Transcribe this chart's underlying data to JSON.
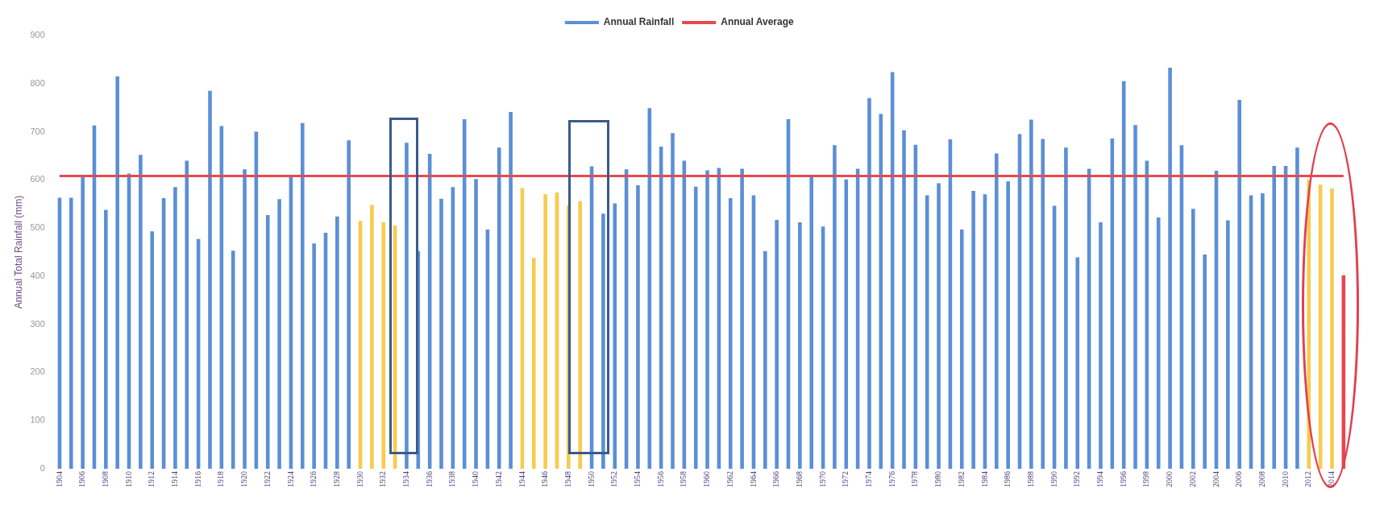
{
  "chart_data": {
    "type": "bar",
    "ylabel": "Annual Total Rainfall (mm)",
    "categories": [
      "1904",
      null,
      "1906",
      null,
      "1908",
      null,
      "1910",
      null,
      "1912",
      null,
      "1914",
      null,
      "1916",
      null,
      "1918",
      null,
      "1920",
      null,
      "1922",
      null,
      "1924",
      null,
      "1926",
      null,
      "1928",
      null,
      "1930",
      null,
      "1932",
      null,
      "1934",
      null,
      "1936",
      null,
      "1938",
      null,
      "1940",
      null,
      "1942",
      null,
      "1944",
      null,
      "1946",
      null,
      "1948",
      null,
      "1950",
      null,
      "1952",
      null,
      "1954",
      null,
      "1956",
      null,
      "1958",
      null,
      "1960",
      null,
      "1962",
      null,
      "1964",
      null,
      "1966",
      null,
      "1968",
      null,
      "1970",
      null,
      "1972",
      null,
      "1974",
      null,
      "1976",
      null,
      "1978",
      null,
      "1980",
      null,
      "1982",
      null,
      "1984",
      null,
      "1986",
      null,
      "1988",
      null,
      "1990",
      null,
      "1992",
      null,
      "1994",
      null,
      "1996",
      null,
      "1998",
      null,
      "2000",
      null,
      "2002",
      null,
      "2004",
      null,
      "2006",
      null,
      "2008",
      null,
      "2010",
      null,
      "2012",
      null,
      "2014",
      null
    ],
    "series": [
      {
        "name": "Annual Rainfall",
        "color": "#5b8fd6",
        "values": [
          563,
          563,
          608,
          713,
          538,
          815,
          613,
          652,
          493,
          562,
          585,
          640,
          477,
          785,
          712,
          453,
          622,
          700,
          527,
          560,
          608,
          718,
          468,
          490,
          524,
          682,
          515,
          548,
          512,
          505,
          677,
          452,
          654,
          561,
          585,
          726,
          602,
          497,
          667,
          741,
          583,
          438,
          570,
          574,
          547,
          556,
          628,
          530,
          551,
          622,
          589,
          749,
          669,
          697,
          640,
          586,
          620,
          625,
          562,
          623,
          568,
          452,
          517,
          726,
          512,
          607,
          503,
          672,
          601,
          623,
          770,
          737,
          824,
          703,
          673,
          568,
          593,
          684,
          497,
          577,
          570,
          655,
          597,
          695,
          725,
          685,
          546,
          667,
          439,
          623,
          512,
          686,
          805,
          714,
          640,
          522,
          833,
          672,
          540,
          445,
          619,
          516,
          766,
          568,
          572,
          629,
          629,
          667,
          600,
          590,
          582,
          402
        ],
        "colors": [
          "#5b8fd6",
          "#5b8fd6",
          "#5b8fd6",
          "#5b8fd6",
          "#5b8fd6",
          "#5b8fd6",
          "#5b8fd6",
          "#5b8fd6",
          "#5b8fd6",
          "#5b8fd6",
          "#5b8fd6",
          "#5b8fd6",
          "#5b8fd6",
          "#5b8fd6",
          "#5b8fd6",
          "#5b8fd6",
          "#5b8fd6",
          "#5b8fd6",
          "#5b8fd6",
          "#5b8fd6",
          "#5b8fd6",
          "#5b8fd6",
          "#5b8fd6",
          "#5b8fd6",
          "#5b8fd6",
          "#5b8fd6",
          "#f7cb4d",
          "#f7cb4d",
          "#f7cb4d",
          "#f7cb4d",
          "#5b8fd6",
          "#5b8fd6",
          "#5b8fd6",
          "#5b8fd6",
          "#5b8fd6",
          "#5b8fd6",
          "#5b8fd6",
          "#5b8fd6",
          "#5b8fd6",
          "#5b8fd6",
          "#f7cb4d",
          "#f7cb4d",
          "#f7cb4d",
          "#f7cb4d",
          "#f7cb4d",
          "#f7cb4d",
          "#5b8fd6",
          "#5b8fd6",
          "#5b8fd6",
          "#5b8fd6",
          "#5b8fd6",
          "#5b8fd6",
          "#5b8fd6",
          "#5b8fd6",
          "#5b8fd6",
          "#5b8fd6",
          "#5b8fd6",
          "#5b8fd6",
          "#5b8fd6",
          "#5b8fd6",
          "#5b8fd6",
          "#5b8fd6",
          "#5b8fd6",
          "#5b8fd6",
          "#5b8fd6",
          "#5b8fd6",
          "#5b8fd6",
          "#5b8fd6",
          "#5b8fd6",
          "#5b8fd6",
          "#5b8fd6",
          "#5b8fd6",
          "#5b8fd6",
          "#5b8fd6",
          "#5b8fd6",
          "#5b8fd6",
          "#5b8fd6",
          "#5b8fd6",
          "#5b8fd6",
          "#5b8fd6",
          "#5b8fd6",
          "#5b8fd6",
          "#5b8fd6",
          "#5b8fd6",
          "#5b8fd6",
          "#5b8fd6",
          "#5b8fd6",
          "#5b8fd6",
          "#5b8fd6",
          "#5b8fd6",
          "#5b8fd6",
          "#5b8fd6",
          "#5b8fd6",
          "#5b8fd6",
          "#5b8fd6",
          "#5b8fd6",
          "#5b8fd6",
          "#5b8fd6",
          "#5b8fd6",
          "#5b8fd6",
          "#5b8fd6",
          "#5b8fd6",
          "#5b8fd6",
          "#5b8fd6",
          "#5b8fd6",
          "#5b8fd6",
          "#5b8fd6",
          "#5b8fd6",
          "#f7cb4d",
          "#f7cb4d",
          "#f7cb4d",
          "#e8474f"
        ]
      },
      {
        "name": "Annual Average",
        "type": "line",
        "color": "#e8474f",
        "values": [
          608,
          608,
          608,
          608,
          608,
          608,
          608,
          608,
          608,
          608,
          608,
          608,
          608,
          608,
          608,
          608,
          608,
          608,
          608,
          608,
          608,
          608,
          608,
          608,
          608,
          608,
          608,
          608,
          608,
          608,
          608,
          608,
          608,
          608,
          608,
          608,
          608,
          608,
          608,
          608,
          608,
          608,
          608,
          608,
          608,
          608,
          608,
          608,
          608,
          608,
          608,
          608,
          608,
          608,
          608,
          608,
          608,
          608,
          608,
          608,
          608,
          608,
          608,
          608,
          608,
          608,
          608,
          608,
          608,
          608,
          608,
          608,
          608,
          608,
          608,
          608,
          608,
          608,
          608,
          608,
          608,
          608,
          608,
          608,
          608,
          608,
          608,
          608,
          608,
          608,
          608,
          608,
          608,
          608,
          608,
          608,
          608,
          608,
          608,
          608,
          608,
          608,
          608,
          608,
          608,
          608,
          608,
          608,
          608,
          608,
          608,
          608
        ]
      }
    ],
    "ylim": [
      0,
      900
    ],
    "yticks": [
      0,
      100,
      200,
      300,
      400,
      500,
      600,
      700,
      800,
      900
    ],
    "legend": "top",
    "marker": "none"
  }
}
